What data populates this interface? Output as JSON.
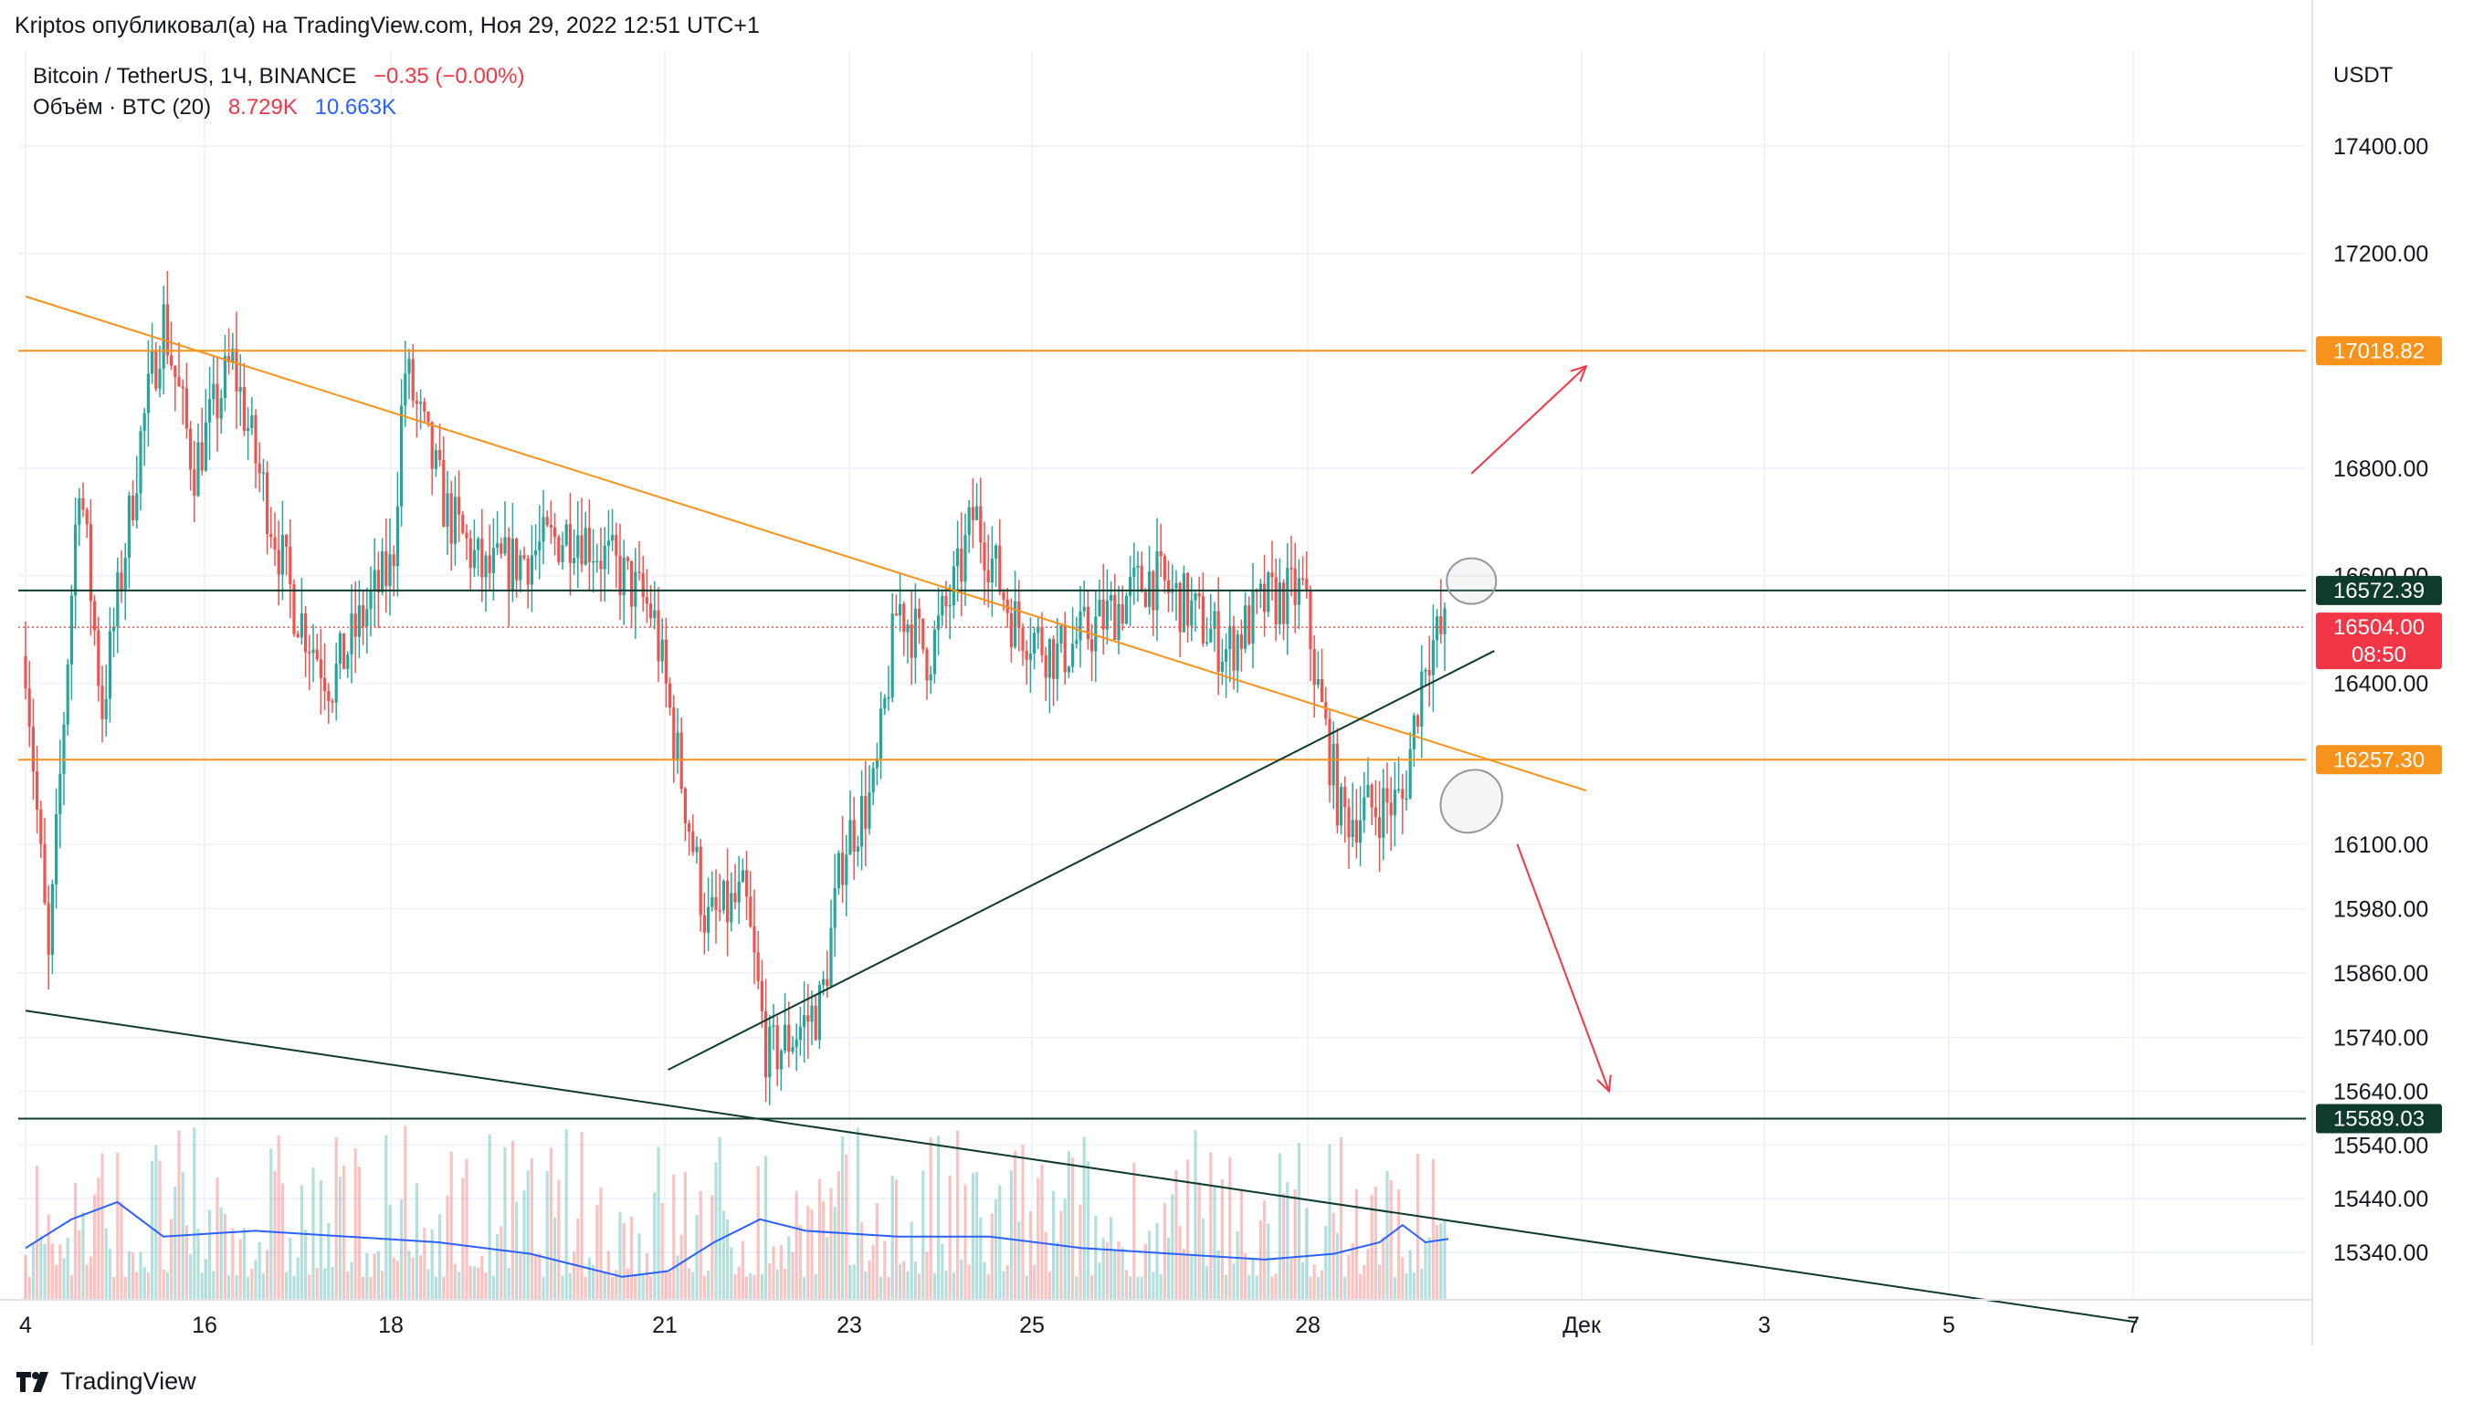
{
  "header": {
    "author_line": "Kriptos опубликовал(а) на TradingView.com, Ноя 29, 2022 12:51 UTC+1",
    "symbol_name": "Bitcoin / TetherUS, 1Ч, BINANCE",
    "change": "−0.35 (−0.00%)",
    "volume_label": "Объём · BTC (20)",
    "volume_value": "8.729K",
    "volume_ma_value": "10.663K"
  },
  "footer": {
    "brand": "TradingView"
  },
  "colors": {
    "up": "#26a69a",
    "down": "#ef5350",
    "orange": "#f7931a",
    "dark": "#0e3b2e",
    "arrow": "#f23645",
    "ma": "#2962ff",
    "grid": "#f0f3fa",
    "axis_text": "#131722"
  },
  "chart_data": {
    "type": "candlestick",
    "title": "Bitcoin / TetherUS, 1Ч, BINANCE",
    "currency": "USDT",
    "x_ticks": [
      "4",
      "16",
      "18",
      "21",
      "23",
      "25",
      "28",
      "Дек",
      "3",
      "5",
      "7"
    ],
    "y_ticks": [
      "17400.00",
      "17200.00",
      "16800.00",
      "16600.00",
      "16400.00",
      "16100.00",
      "15980.00",
      "15860.00",
      "15740.00",
      "15640.00",
      "15540.00",
      "15440.00",
      "15340.00"
    ],
    "price_labels": [
      {
        "value": "17018.82",
        "style": "orange"
      },
      {
        "value": "16572.39",
        "style": "dark"
      },
      {
        "value": "16504.00",
        "sub": "08:50",
        "style": "red"
      },
      {
        "value": "16257.30",
        "style": "orange"
      },
      {
        "value": "15589.03",
        "style": "dark"
      }
    ],
    "horizontal_levels": [
      17018.82,
      16572.39,
      16257.3,
      15589.03
    ],
    "last_price": 16504.0,
    "trendlines": [
      {
        "name": "descending-resistance",
        "from": [
          "Nov 14",
          17120
        ],
        "to": [
          "Dec 1",
          16200
        ],
        "color": "orange"
      },
      {
        "name": "ascending-support",
        "from": [
          "Nov 21",
          15680
        ],
        "to": [
          "Nov 30",
          16460
        ],
        "color": "dark"
      },
      {
        "name": "long-descending-line",
        "from": [
          "Nov 14",
          15790
        ],
        "to": [
          "Dec 7",
          15210
        ],
        "color": "dark"
      }
    ],
    "price_path": [
      [
        "Nov 14 00:00",
        16450
      ],
      [
        "Nov 14 06:00",
        15870
      ],
      [
        "Nov 14 14:00",
        16800
      ],
      [
        "Nov 14 20:00",
        16350
      ],
      [
        "Nov 15 06:00",
        16850
      ],
      [
        "Nov 15 12:00",
        17080
      ],
      [
        "Nov 15 20:00",
        16800
      ],
      [
        "Nov 16 06:00",
        17000
      ],
      [
        "Nov 16 12:00",
        16820
      ],
      [
        "Nov 16 22:00",
        16550
      ],
      [
        "Nov 17 08:00",
        16400
      ],
      [
        "Nov 17 18:00",
        16550
      ],
      [
        "Nov 18 00:00",
        16620
      ],
      [
        "Nov 18 03:00",
        16990
      ],
      [
        "Nov 18 14:00",
        16720
      ],
      [
        "Nov 19 00:00",
        16600
      ],
      [
        "Nov 19 12:00",
        16640
      ],
      [
        "Nov 20 00:00",
        16690
      ],
      [
        "Nov 20 12:00",
        16600
      ],
      [
        "Nov 20 20:00",
        16530
      ],
      [
        "Nov 21 04:00",
        16200
      ],
      [
        "Nov 21 10:00",
        15950
      ],
      [
        "Nov 21 20:00",
        16000
      ],
      [
        "Nov 22 02:00",
        15700
      ],
      [
        "Nov 22 08:00",
        15740
      ],
      [
        "Nov 22 16:00",
        15800
      ],
      [
        "Nov 22 22:00",
        16100
      ],
      [
        "Nov 23 06:00",
        16200
      ],
      [
        "Nov 23 12:00",
        16550
      ],
      [
        "Nov 23 20:00",
        16450
      ],
      [
        "Nov 24 04:00",
        16600
      ],
      [
        "Nov 24 08:00",
        16720
      ],
      [
        "Nov 24 18:00",
        16520
      ],
      [
        "Nov 25 06:00",
        16450
      ],
      [
        "Nov 25 18:00",
        16520
      ],
      [
        "Nov 26 06:00",
        16600
      ],
      [
        "Nov 26 16:00",
        16540
      ],
      [
        "Nov 27 02:00",
        16460
      ],
      [
        "Nov 27 12:00",
        16550
      ],
      [
        "Nov 27 22:00",
        16570
      ],
      [
        "Nov 28 02:00",
        16380
      ],
      [
        "Nov 28 08:00",
        16150
      ],
      [
        "Nov 28 18:00",
        16170
      ],
      [
        "Nov 29 00:00",
        16180
      ],
      [
        "Nov 29 06:00",
        16460
      ],
      [
        "Nov 29 12:00",
        16504
      ]
    ],
    "annotations": [
      {
        "type": "arrow",
        "direction": "up",
        "from": [
          "Nov 29 18:00",
          16790
        ],
        "to": [
          "Dec 1",
          16990
        ],
        "color": "red"
      },
      {
        "type": "arrow",
        "direction": "down",
        "from": [
          "Nov 30 06:00",
          16100
        ],
        "to": [
          "Dec 1 06:00",
          15640
        ],
        "color": "red"
      },
      {
        "type": "ellipse",
        "at": [
          "Nov 29 18:00",
          16590
        ],
        "color": "grey"
      },
      {
        "type": "ellipse",
        "at": [
          "Nov 29 18:00",
          16180
        ],
        "color": "grey"
      }
    ],
    "volume": {
      "label": "Объём · BTC (20)",
      "last": "8.729K",
      "ma_last": "10.663K",
      "ma_path": [
        [
          "Nov 14 00:00",
          9
        ],
        [
          "Nov 14 12:00",
          14
        ],
        [
          "Nov 15 00:00",
          17
        ],
        [
          "Nov 15 12:00",
          11
        ],
        [
          "Nov 16 12:00",
          12
        ],
        [
          "Nov 17 12:00",
          11
        ],
        [
          "Nov 18 12:00",
          10
        ],
        [
          "Nov 19 12:00",
          8
        ],
        [
          "Nov 20 12:00",
          4
        ],
        [
          "Nov 21 00:00",
          5
        ],
        [
          "Nov 21 12:00",
          10
        ],
        [
          "Nov 22 00:00",
          14
        ],
        [
          "Nov 22 12:00",
          12
        ],
        [
          "Nov 23 12:00",
          11
        ],
        [
          "Nov 24 12:00",
          11
        ],
        [
          "Nov 25 12:00",
          9
        ],
        [
          "Nov 26 12:00",
          8
        ],
        [
          "Nov 27 12:00",
          7
        ],
        [
          "Nov 28 06:00",
          8
        ],
        [
          "Nov 28 18:00",
          10
        ],
        [
          "Nov 29 00:00",
          13
        ],
        [
          "Nov 29 06:00",
          10
        ],
        [
          "Nov 29 12:00",
          10.6
        ]
      ]
    },
    "grid": true,
    "legend": "top-left"
  }
}
